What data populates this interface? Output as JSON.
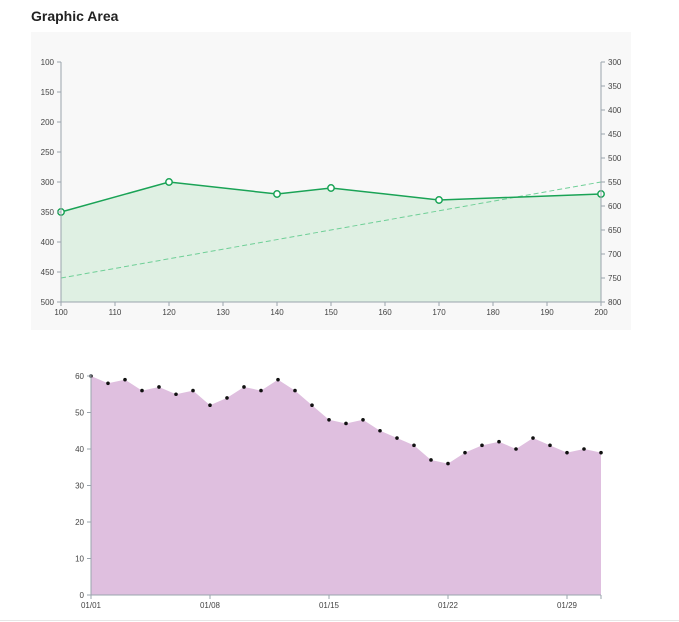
{
  "page": {
    "title": "Graphic Area"
  },
  "colors": {
    "panel_background": "#f8f8f8",
    "line_green": "#1aa356",
    "area_green": "#dff0e3",
    "dashed_green": "#6fcf97",
    "area_purple": "#dfbfdf",
    "point_dark": "#111111",
    "axis": "#9aa4ad",
    "tick_text": "#444444"
  },
  "chart_data": [
    {
      "type": "line",
      "title": "",
      "x": [
        100,
        120,
        140,
        150,
        170,
        200
      ],
      "series": [
        {
          "values": [
            350,
            300,
            320,
            310,
            330,
            320
          ],
          "style": "solid line with open circle markers and filled area below",
          "axis": "left"
        },
        {
          "x": [
            100,
            200
          ],
          "values": [
            750,
            550
          ],
          "style": "dashed",
          "axis": "right"
        }
      ],
      "xlim": [
        100,
        200
      ],
      "xticks": [
        "100",
        "110",
        "120",
        "130",
        "140",
        "150",
        "160",
        "170",
        "180",
        "190",
        "200"
      ],
      "ylim_left": [
        100,
        500
      ],
      "yticks_left": [
        "100",
        "150",
        "200",
        "250",
        "300",
        "350",
        "400",
        "450",
        "500"
      ],
      "left_axis_inverted": true,
      "ylim_right": [
        300,
        800
      ],
      "yticks_right": [
        "300",
        "350",
        "400",
        "450",
        "500",
        "550",
        "600",
        "650",
        "700",
        "750",
        "800"
      ],
      "right_axis_inverted": true,
      "grid": false
    },
    {
      "type": "area",
      "title": "",
      "x": [
        "01/01",
        "01/02",
        "01/03",
        "01/04",
        "01/05",
        "01/06",
        "01/07",
        "01/08",
        "01/09",
        "01/10",
        "01/11",
        "01/12",
        "01/13",
        "01/14",
        "01/15",
        "01/16",
        "01/17",
        "01/18",
        "01/19",
        "01/20",
        "01/21",
        "01/22",
        "01/23",
        "01/24",
        "01/25",
        "01/26",
        "01/27",
        "01/28",
        "01/29",
        "01/30",
        "01/31"
      ],
      "values": [
        60,
        58,
        59,
        56,
        57,
        55,
        56,
        52,
        54,
        57,
        56,
        59,
        56,
        52,
        48,
        47,
        48,
        45,
        43,
        41,
        37,
        36,
        39,
        41,
        42,
        40,
        43,
        41,
        39,
        40,
        39
      ],
      "ylim": [
        0,
        60
      ],
      "yticks": [
        "0",
        "10",
        "20",
        "30",
        "40",
        "50",
        "60"
      ],
      "xticks": [
        "01/01",
        "01/08",
        "01/15",
        "01/22",
        "01/29"
      ],
      "markers": "small dark dots",
      "grid": false
    }
  ]
}
